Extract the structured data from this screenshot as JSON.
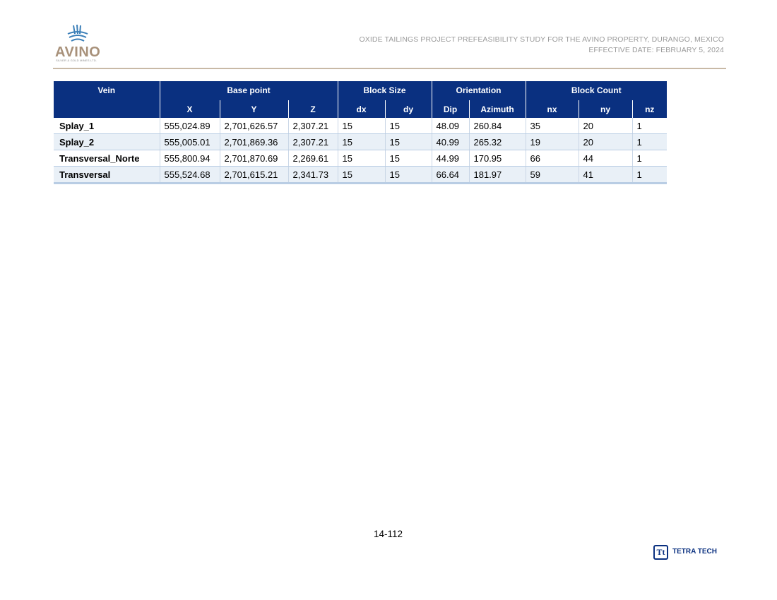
{
  "logo": {
    "name": "AVINO",
    "subtitle": "SILVER & GOLD MINES LTD."
  },
  "header": {
    "line1": "OXIDE TAILINGS PROJECT PREFEASIBILITY STUDY FOR THE AVINO PROPERTY, DURANGO, MEXICO",
    "line2": "EFFECTIVE DATE: FEBRUARY 5, 2024"
  },
  "table": {
    "groups": [
      "Vein",
      "Base point",
      "Block Size",
      "Orientation",
      "Block Count"
    ],
    "columns": [
      "X",
      "Y",
      "Z",
      "dx",
      "dy",
      "Dip",
      "Azimuth",
      "nx",
      "ny",
      "nz"
    ],
    "rows": [
      [
        "Splay_1",
        "555,024.89",
        "2,701,626.57",
        "2,307.21",
        "15",
        "15",
        "48.09",
        "260.84",
        "35",
        "20",
        "1"
      ],
      [
        "Splay_2",
        "555,005.01",
        "2,701,869.36",
        "2,307.21",
        "15",
        "15",
        "40.99",
        "265.32",
        "19",
        "20",
        "1"
      ],
      [
        "Transversal_Norte",
        "555,800.94",
        "2,701,870.69",
        "2,269.61",
        "15",
        "15",
        "44.99",
        "170.95",
        "66",
        "44",
        "1"
      ],
      [
        "Transversal",
        "555,524.68",
        "2,701,615.21",
        "2,341.73",
        "15",
        "15",
        "66.64",
        "181.97",
        "59",
        "41",
        "1"
      ]
    ]
  },
  "footer": {
    "page": "14-112",
    "company": "TETRA TECH",
    "company_mark": "Tt"
  },
  "colors": {
    "header_blue": "#0a3080",
    "rule_tan": "#c8b9a6",
    "row_alt": "#e9f0f7",
    "logo_tan": "#a8917a"
  }
}
